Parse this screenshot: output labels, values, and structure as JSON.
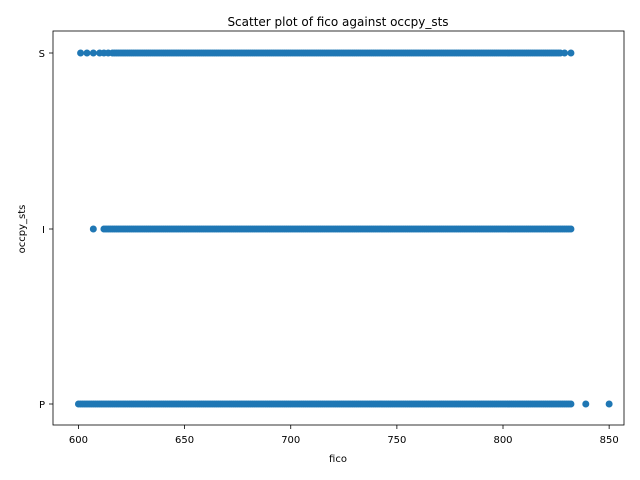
{
  "chart_data": {
    "type": "scatter",
    "title": "Scatter plot of fico against occpy_sts",
    "xlabel": "fico",
    "ylabel": "occpy_sts",
    "xlim": [
      588,
      857
    ],
    "x_ticks": [
      600,
      650,
      700,
      750,
      800,
      850
    ],
    "y_categories": [
      "P",
      "I",
      "S"
    ],
    "grid": false,
    "legend": "none",
    "color": "#1f77b4",
    "series": [
      {
        "category": "S",
        "dense_range": [
          620,
          822
        ],
        "sparse_points": [
          601,
          604,
          607,
          610,
          612,
          614,
          616,
          617,
          618,
          619,
          823,
          824,
          825,
          826,
          827,
          829,
          832
        ]
      },
      {
        "category": "I",
        "dense_range": [
          616,
          830
        ],
        "sparse_points": [
          607,
          612,
          613,
          614,
          615,
          831,
          832
        ]
      },
      {
        "category": "P",
        "dense_range": [
          600,
          826
        ],
        "sparse_points": [
          827,
          828,
          829,
          830,
          831,
          832,
          839,
          850
        ]
      }
    ]
  }
}
